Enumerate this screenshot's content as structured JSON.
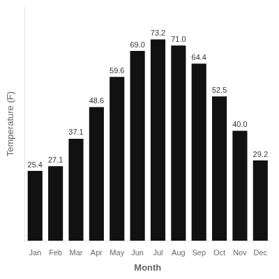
{
  "chart_data": {
    "type": "bar",
    "categories": [
      "Jan",
      "Feb",
      "Mar",
      "Apr",
      "May",
      "Jun",
      "Jul",
      "Aug",
      "Sep",
      "Oct",
      "Nov",
      "Dec"
    ],
    "values": [
      25.4,
      27.1,
      37.1,
      48.6,
      59.6,
      69.0,
      73.2,
      71.0,
      64.4,
      52.5,
      40.0,
      29.2
    ],
    "value_labels": [
      "25.4",
      "27.1",
      "37.1",
      "48.6",
      "59.6",
      "69.0",
      "73.2",
      "71.0",
      "64.4",
      "52.5",
      "40.0",
      "29.2"
    ],
    "color": "#111111",
    "xlabel": "Month",
    "ylabel": "Temperature (F)",
    "ylim": [
      0,
      85
    ],
    "grid": false,
    "data_labels": true,
    "tick_labels": "x"
  }
}
